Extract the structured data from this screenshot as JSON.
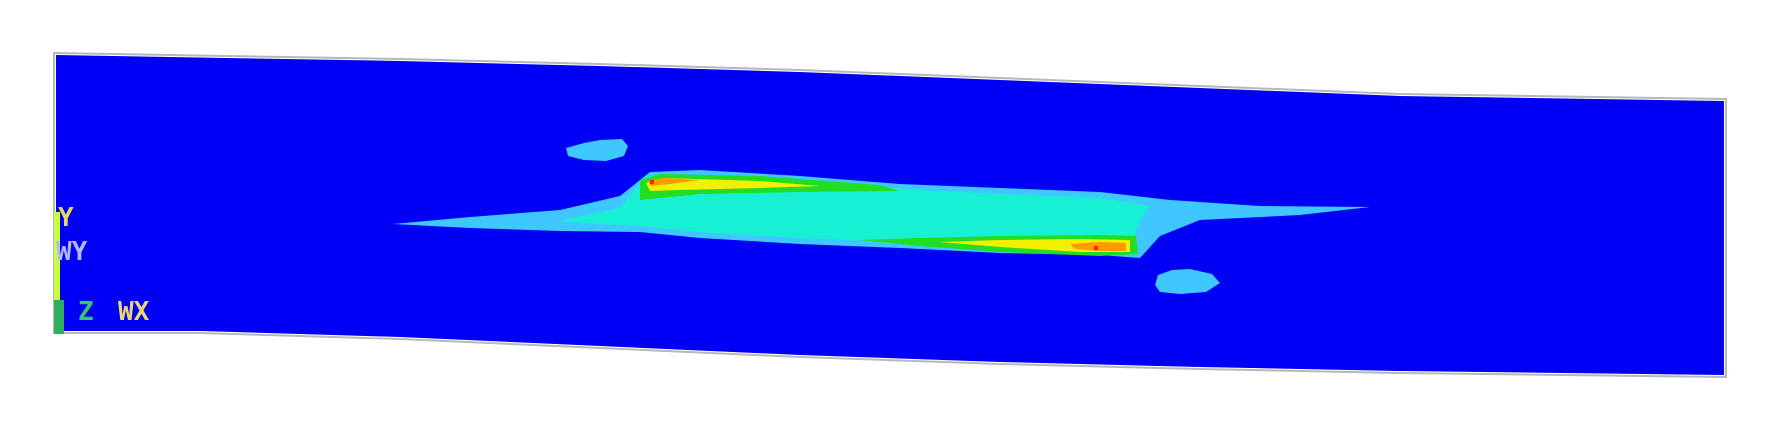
{
  "figure": {
    "type": "contour-plot",
    "description_visible": false,
    "colors": {
      "background": "#ffffff",
      "outline": "#b8b8b8",
      "band_blue": "#0000f5",
      "band_light_blue": "#3fc8ff",
      "band_cyan": "#18f0d4",
      "band_green": "#22dd22",
      "band_yellow": "#f0f000",
      "band_orange": "#ff9a00",
      "band_red": "#ff2020"
    }
  },
  "triad": {
    "y_label": "Y",
    "wy_label": "WY",
    "z_label": "Z",
    "wx_label": "WX",
    "colors": {
      "y": "#e8d85a",
      "wy": "#b6b6ff",
      "z": "#39c46a",
      "wx": "#ecd86a",
      "axis": "#c8ff40"
    }
  }
}
